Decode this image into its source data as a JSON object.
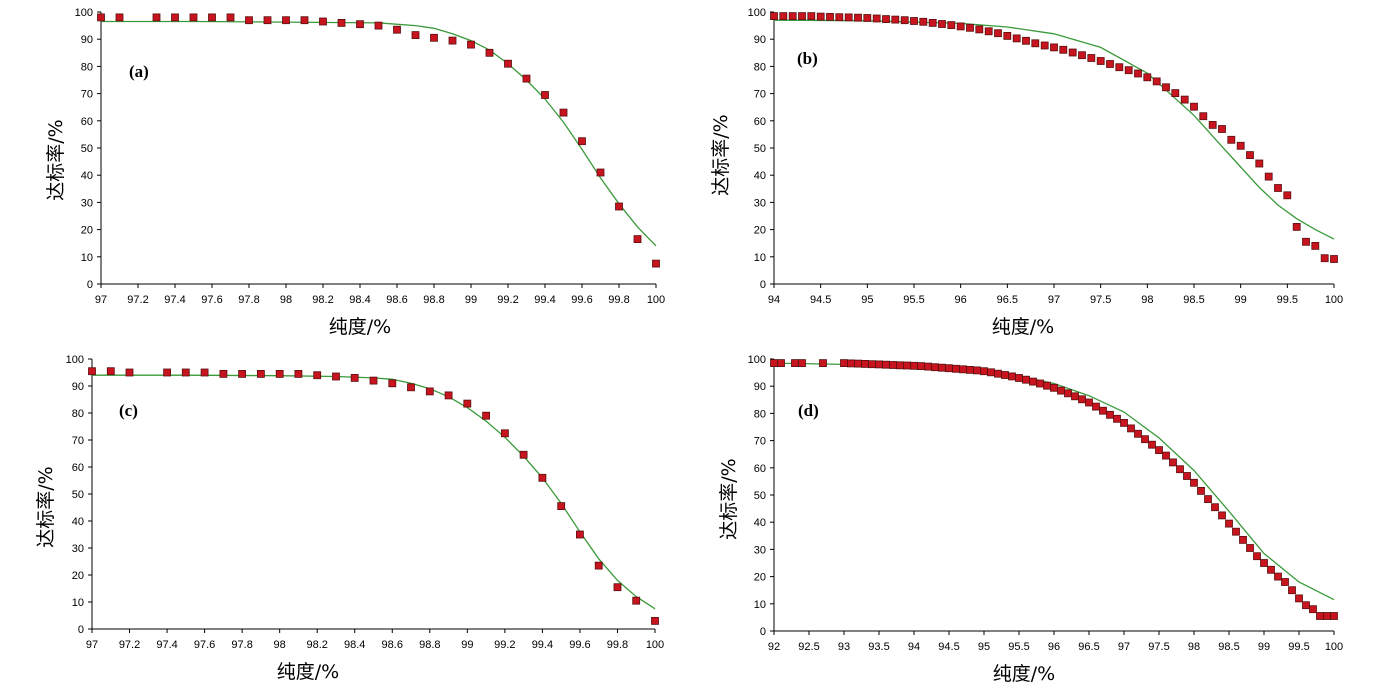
{
  "colors": {
    "marker_fill": "#c8141e",
    "marker_stroke": "#5a1010",
    "curve": "#3a9a3a",
    "axis": "#000000"
  },
  "chart_data": [
    {
      "type": "scatter",
      "panel_label": "(a)",
      "xlabel": "纯度/%",
      "ylabel": "达标率/%",
      "xlim": [
        97,
        100
      ],
      "ylim": [
        0,
        100
      ],
      "x_ticks": [
        "97",
        "97.2",
        "97.4",
        "97.6",
        "97.8",
        "98",
        "98.2",
        "98.4",
        "98.6",
        "98.8",
        "99",
        "99.2",
        "99.4",
        "99.6",
        "99.8",
        "100"
      ],
      "y_ticks": [
        "0",
        "10",
        "20",
        "30",
        "40",
        "50",
        "60",
        "70",
        "80",
        "90",
        "100"
      ],
      "grid": false,
      "series": [
        {
          "kind": "points",
          "x": [
            97.0,
            97.1,
            97.3,
            97.4,
            97.5,
            97.6,
            97.7,
            97.8,
            97.9,
            98.0,
            98.1,
            98.2,
            98.3,
            98.4,
            98.5,
            98.6,
            98.7,
            98.8,
            98.9,
            99.0,
            99.1,
            99.2,
            99.3,
            99.4,
            99.5,
            99.6,
            99.7,
            99.8,
            99.9,
            100.0
          ],
          "y": [
            98,
            98,
            98,
            98,
            98,
            98,
            98,
            97,
            97,
            97,
            97,
            96.5,
            96,
            95.5,
            95,
            93.5,
            91.5,
            90.5,
            89.5,
            88,
            85,
            81,
            75.5,
            69.5,
            63,
            52.5,
            41,
            28.5,
            16.5,
            7.5
          ]
        },
        {
          "kind": "line",
          "x": [
            97.0,
            97.5,
            98.0,
            98.5,
            98.7,
            98.8,
            98.9,
            99.0,
            99.1,
            99.2,
            99.3,
            99.4,
            99.5,
            99.6,
            99.7,
            99.8,
            99.9,
            100.0
          ],
          "y": [
            96.5,
            96.5,
            96.3,
            96,
            95,
            94,
            92,
            89.5,
            86,
            81,
            75,
            68,
            59.5,
            49.5,
            39,
            29.5,
            21,
            14
          ]
        }
      ]
    },
    {
      "type": "scatter",
      "panel_label": "(b)",
      "xlabel": "纯度/%",
      "ylabel": "达标率/%",
      "xlim": [
        94,
        100
      ],
      "ylim": [
        0,
        100
      ],
      "x_ticks": [
        "94",
        "94.5",
        "95",
        "95.5",
        "96",
        "96.5",
        "97",
        "97.5",
        "98",
        "98.5",
        "99",
        "99.5",
        "100"
      ],
      "y_ticks": [
        "0",
        "10",
        "20",
        "30",
        "40",
        "50",
        "60",
        "70",
        "80",
        "90",
        "100"
      ],
      "grid": false,
      "series": [
        {
          "kind": "points",
          "x": [
            94.0,
            94.1,
            94.2,
            94.3,
            94.4,
            94.5,
            94.6,
            94.7,
            94.8,
            94.9,
            95.0,
            95.1,
            95.2,
            95.3,
            95.4,
            95.5,
            95.6,
            95.7,
            95.8,
            95.9,
            96.0,
            96.1,
            96.2,
            96.3,
            96.4,
            96.5,
            96.6,
            96.7,
            96.8,
            96.9,
            97.0,
            97.1,
            97.2,
            97.3,
            97.4,
            97.5,
            97.6,
            97.7,
            97.8,
            97.9,
            98.0,
            98.1,
            98.2,
            98.3,
            98.4,
            98.5,
            98.6,
            98.7,
            98.8,
            98.9,
            99.0,
            99.1,
            99.2,
            99.3,
            99.4,
            99.5,
            99.6,
            99.7,
            99.8,
            99.9,
            100.0
          ],
          "y": [
            98.5,
            98.5,
            98.5,
            98.5,
            98.5,
            98.3,
            98.2,
            98.1,
            98,
            97.9,
            97.8,
            97.6,
            97.4,
            97.2,
            97,
            96.7,
            96.4,
            96,
            95.6,
            95.2,
            94.7,
            94.2,
            93.6,
            92.9,
            92.2,
            91.2,
            90.3,
            89.4,
            88.5,
            87.7,
            87,
            86.1,
            85.1,
            84.1,
            83.1,
            82,
            80.9,
            79.7,
            78.6,
            77.4,
            76,
            74.5,
            72.3,
            70.2,
            67.8,
            65.2,
            61.7,
            58.5,
            57,
            53,
            50.8,
            47.4,
            44.3,
            39.5,
            35.3,
            32.6,
            21,
            15.5,
            14,
            9.5,
            9.2
          ]
        },
        {
          "kind": "line",
          "x": [
            94.0,
            95.0,
            96.0,
            96.5,
            97.0,
            97.5,
            98.0,
            98.5,
            98.8,
            99.0,
            99.2,
            99.4,
            99.6,
            99.8,
            100.0
          ],
          "y": [
            97,
            96.8,
            95.8,
            94.5,
            92,
            87,
            77.5,
            62,
            50.5,
            43,
            35.5,
            29,
            24,
            20,
            16.5
          ]
        }
      ]
    },
    {
      "type": "scatter",
      "panel_label": "(c)",
      "xlabel": "纯度/%",
      "ylabel": "达标率/%",
      "xlim": [
        97,
        100
      ],
      "ylim": [
        0,
        100
      ],
      "x_ticks": [
        "97",
        "97.2",
        "97.4",
        "97.6",
        "97.8",
        "98",
        "98.2",
        "98.4",
        "98.6",
        "98.8",
        "99",
        "99.2",
        "99.4",
        "99.6",
        "99.8",
        "100"
      ],
      "y_ticks": [
        "0",
        "10",
        "20",
        "30",
        "40",
        "50",
        "60",
        "70",
        "80",
        "90",
        "100"
      ],
      "grid": false,
      "series": [
        {
          "kind": "points",
          "x": [
            97.0,
            97.1,
            97.2,
            97.4,
            97.5,
            97.6,
            97.7,
            97.8,
            97.9,
            98.0,
            98.1,
            98.2,
            98.3,
            98.4,
            98.5,
            98.6,
            98.7,
            98.8,
            98.9,
            99.0,
            99.1,
            99.2,
            99.3,
            99.4,
            99.5,
            99.6,
            99.7,
            99.8,
            99.9,
            100.0
          ],
          "y": [
            95.5,
            95.5,
            95,
            95,
            95,
            95,
            94.5,
            94.5,
            94.5,
            94.5,
            94.5,
            94,
            93.5,
            93,
            92,
            91,
            89.5,
            88,
            86.5,
            83.5,
            79,
            72.5,
            64.5,
            56,
            45.5,
            35,
            23.5,
            15.5,
            10.5,
            3
          ]
        },
        {
          "kind": "line",
          "x": [
            97.0,
            97.5,
            98.0,
            98.3,
            98.5,
            98.6,
            98.7,
            98.8,
            98.9,
            99.0,
            99.1,
            99.2,
            99.3,
            99.4,
            99.5,
            99.6,
            99.7,
            99.8,
            99.9,
            100.0
          ],
          "y": [
            94,
            94,
            93.8,
            93.5,
            93,
            92.5,
            91,
            89,
            86,
            82,
            77,
            71,
            64,
            56,
            46.5,
            36,
            26,
            18,
            12,
            7.5
          ]
        }
      ]
    },
    {
      "type": "scatter",
      "panel_label": "(d)",
      "xlabel": "纯度/%",
      "ylabel": "达标率/%",
      "xlim": [
        92,
        100
      ],
      "ylim": [
        0,
        100
      ],
      "x_ticks": [
        "92",
        "92.5",
        "93",
        "93.5",
        "94",
        "94.5",
        "95",
        "95.5",
        "96",
        "96.5",
        "97",
        "97.5",
        "98",
        "98.5",
        "99",
        "99.5",
        "100"
      ],
      "y_ticks": [
        "0",
        "10",
        "20",
        "30",
        "40",
        "50",
        "60",
        "70",
        "80",
        "90",
        "100"
      ],
      "grid": false,
      "series": [
        {
          "kind": "points",
          "x": [
            92.0,
            92.1,
            92.3,
            92.4,
            92.7,
            93.0,
            93.1,
            93.2,
            93.3,
            93.4,
            93.5,
            93.6,
            93.7,
            93.8,
            93.9,
            94.0,
            94.1,
            94.2,
            94.3,
            94.4,
            94.5,
            94.6,
            94.7,
            94.8,
            94.9,
            95.0,
            95.1,
            95.2,
            95.3,
            95.4,
            95.5,
            95.6,
            95.7,
            95.8,
            95.9,
            96.0,
            96.1,
            96.2,
            96.3,
            96.4,
            96.5,
            96.6,
            96.7,
            96.8,
            96.9,
            97.0,
            97.1,
            97.2,
            97.3,
            97.4,
            97.5,
            97.6,
            97.7,
            97.8,
            97.9,
            98.0,
            98.1,
            98.2,
            98.3,
            98.4,
            98.5,
            98.6,
            98.7,
            98.8,
            98.9,
            99.0,
            99.1,
            99.2,
            99.3,
            99.4,
            99.5,
            99.6,
            99.7,
            99.8,
            99.9,
            100.0
          ],
          "y": [
            98.5,
            98.5,
            98.5,
            98.5,
            98.5,
            98.5,
            98.4,
            98.3,
            98.2,
            98.1,
            98,
            97.9,
            97.8,
            97.7,
            97.6,
            97.5,
            97.4,
            97.2,
            97,
            96.8,
            96.6,
            96.4,
            96.2,
            96,
            95.8,
            95.5,
            95.1,
            94.6,
            94.1,
            93.6,
            93,
            92.4,
            91.7,
            91,
            90.2,
            89.4,
            88.4,
            87.4,
            86.3,
            85.2,
            84,
            82.5,
            81,
            79.5,
            78,
            76.5,
            74.5,
            72.5,
            70.5,
            68.5,
            66.5,
            64.5,
            62,
            59.5,
            57,
            54.5,
            51.5,
            48.5,
            45.5,
            42.5,
            39.5,
            36.5,
            33.5,
            30.5,
            27.5,
            25,
            22.5,
            20,
            18,
            15,
            12,
            9.5,
            8,
            5.5,
            5.5,
            5.5
          ]
        },
        {
          "kind": "line",
          "x": [
            92.0,
            93.0,
            94.0,
            95.0,
            95.5,
            96.0,
            96.5,
            97.0,
            97.5,
            98.0,
            98.5,
            99.0,
            99.5,
            100.0
          ],
          "y": [
            98.5,
            98,
            97.2,
            95.5,
            93.8,
            91,
            86.5,
            80.5,
            71,
            59,
            44,
            28.5,
            18,
            11.5
          ]
        }
      ]
    }
  ]
}
